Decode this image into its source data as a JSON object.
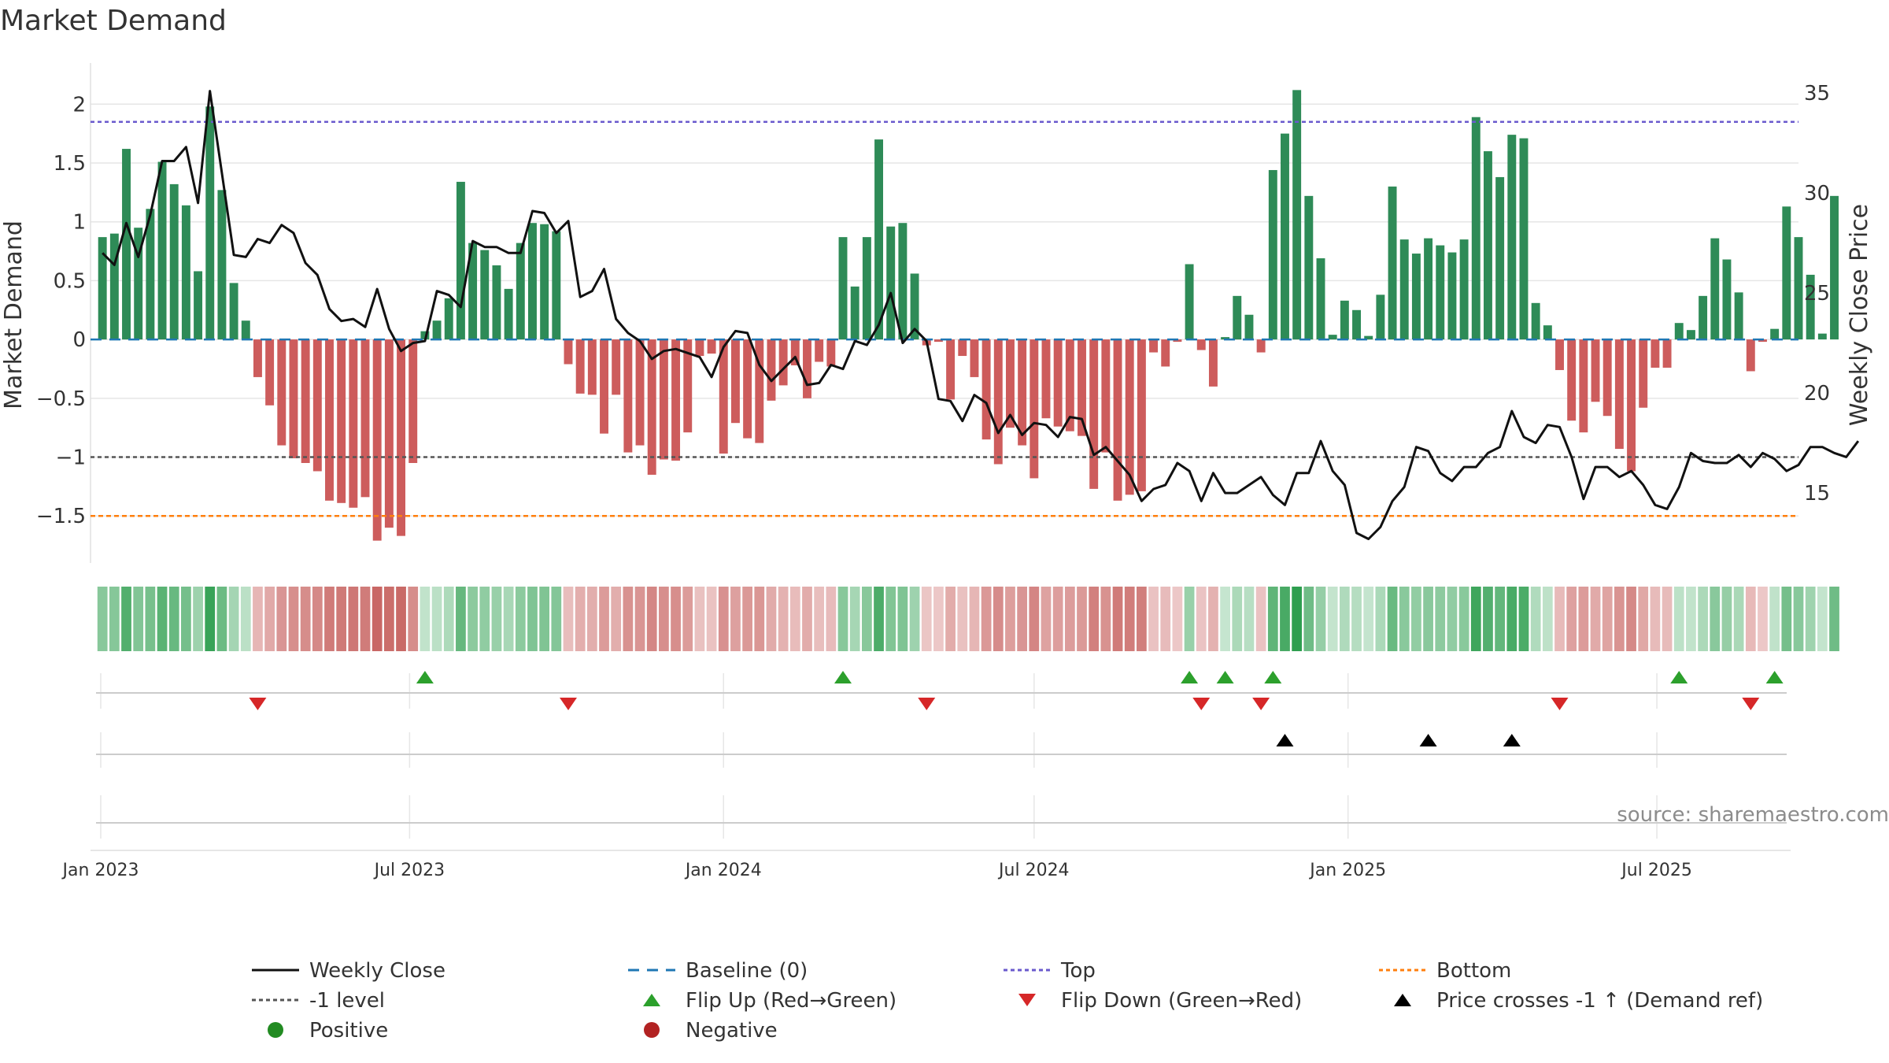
{
  "title": "Market Demand",
  "source": "source: sharemaestro.com",
  "colors": {
    "positive": "#2e8b57",
    "negative": "#cd5c5c",
    "price": "#111111",
    "baseline": "#1f77b4",
    "top": "#6a5acd",
    "bottom": "#ff7f0e",
    "minus_one": "#555555",
    "flip_up": "#2ca02c",
    "flip_down": "#d62728",
    "cross": "#000000",
    "legend_positive": "#228b22",
    "legend_negative": "#b22222"
  },
  "chart_data": {
    "type": "bar",
    "title": "Market Demand",
    "ylabel": "Market Demand",
    "y2label": "Weekly Close Price",
    "ylim": [
      -1.9,
      2.35
    ],
    "y2lim": [
      11.5,
      36.5
    ],
    "yticks": [
      -1.5,
      -1,
      -0.5,
      0,
      0.5,
      1,
      1.5,
      2
    ],
    "ytick_labels": [
      "−1.5",
      "−1",
      "−0.5",
      "0",
      "0.5",
      "1",
      "1.5",
      "2"
    ],
    "y2ticks": [
      15,
      20,
      25,
      30,
      35
    ],
    "y2tick_labels": [
      "15",
      "20",
      "25",
      "30",
      "35"
    ],
    "start_date": "2023-01-02",
    "x_date_range": [
      "2022-12-26",
      "2025-09-22"
    ],
    "x_ticks": [
      {
        "label": "Jan 2023",
        "date": "2023-01-01"
      },
      {
        "label": "Jul 2023",
        "date": "2023-07-01"
      },
      {
        "label": "Jan 2024",
        "date": "2024-01-01"
      },
      {
        "label": "Jul 2024",
        "date": "2024-07-01"
      },
      {
        "label": "Jan 2025",
        "date": "2025-01-01"
      },
      {
        "label": "Jul 2025",
        "date": "2025-07-01"
      }
    ],
    "reference_lines": {
      "baseline": 0,
      "minus_one": -1,
      "top": 1.85,
      "bottom": -1.5
    },
    "demand": [
      0.87,
      0.9,
      1.62,
      0.95,
      1.11,
      1.51,
      1.32,
      1.14,
      0.58,
      1.98,
      1.27,
      0.48,
      0.16,
      -0.32,
      -0.56,
      -0.9,
      -1.01,
      -1.05,
      -1.12,
      -1.37,
      -1.39,
      -1.43,
      -1.34,
      -1.71,
      -1.6,
      -1.67,
      -1.05,
      0.07,
      0.16,
      0.35,
      1.34,
      0.82,
      0.76,
      0.63,
      0.43,
      0.82,
      0.99,
      0.98,
      0.92,
      -0.21,
      -0.46,
      -0.47,
      -0.8,
      -0.47,
      -0.96,
      -0.9,
      -1.15,
      -1.02,
      -1.03,
      -0.79,
      -0.14,
      -0.12,
      -0.97,
      -0.71,
      -0.84,
      -0.88,
      -0.52,
      -0.39,
      -0.22,
      -0.5,
      -0.19,
      -0.23,
      0.87,
      0.45,
      0.87,
      1.7,
      0.96,
      0.99,
      0.56,
      -0.05,
      -0.02,
      -0.51,
      -0.14,
      -0.32,
      -0.85,
      -1.06,
      -0.75,
      -0.9,
      -1.18,
      -0.67,
      -0.74,
      -0.78,
      -0.82,
      -1.27,
      -0.96,
      -1.37,
      -1.32,
      -1.29,
      -0.11,
      -0.23,
      -0.02,
      0.64,
      -0.09,
      -0.4,
      0.02,
      0.37,
      0.21,
      -0.11,
      1.44,
      1.75,
      2.12,
      1.22,
      0.69,
      0.04,
      0.33,
      0.25,
      0.03,
      0.38,
      1.3,
      0.85,
      0.73,
      0.86,
      0.8,
      0.74,
      0.85,
      1.89,
      1.6,
      1.38,
      1.74,
      1.71,
      0.31,
      0.12,
      -0.26,
      -0.69,
      -0.79,
      -0.53,
      -0.65,
      -0.93,
      -1.12,
      -0.58,
      -0.24,
      -0.24,
      0.14,
      0.08,
      0.37,
      0.86,
      0.68,
      0.4,
      -0.27,
      -0.02,
      0.09,
      1.13,
      0.87,
      0.55,
      0.05,
      1.22
    ],
    "price": [
      27.0,
      26.4,
      28.5,
      26.8,
      28.9,
      31.6,
      31.6,
      32.3,
      29.5,
      35.1,
      31.0,
      26.9,
      26.8,
      27.7,
      27.5,
      28.4,
      28.0,
      26.5,
      25.9,
      24.2,
      23.6,
      23.7,
      23.3,
      25.2,
      23.2,
      22.1,
      22.5,
      22.6,
      25.1,
      24.9,
      24.3,
      27.6,
      27.3,
      27.3,
      27.0,
      27.0,
      29.1,
      29.0,
      28.0,
      28.6,
      24.8,
      25.1,
      26.2,
      23.7,
      23.0,
      22.6,
      21.7,
      22.1,
      22.2,
      22.0,
      21.8,
      20.8,
      22.3,
      23.1,
      23.0,
      21.4,
      20.6,
      21.2,
      21.8,
      20.4,
      20.5,
      21.4,
      21.2,
      22.6,
      22.4,
      23.4,
      25.0,
      22.5,
      23.2,
      22.6,
      19.7,
      19.6,
      18.6,
      19.9,
      19.5,
      18.0,
      18.9,
      17.9,
      18.5,
      18.4,
      17.8,
      18.8,
      18.7,
      16.9,
      17.3,
      16.6,
      15.9,
      14.6,
      15.2,
      15.4,
      16.5,
      16.1,
      14.6,
      16.0,
      15.0,
      15.0,
      15.4,
      15.8,
      14.9,
      14.4,
      16.0,
      16.0,
      17.6,
      16.1,
      15.4,
      13.0,
      12.7,
      13.3,
      14.6,
      15.3,
      17.3,
      17.1,
      16.0,
      15.6,
      16.3,
      16.3,
      17.0,
      17.3,
      19.1,
      17.8,
      17.5,
      18.4,
      18.3,
      16.8,
      14.7,
      16.3,
      16.3,
      15.8,
      16.1,
      15.4,
      14.4,
      14.2,
      15.3,
      17.0,
      16.6,
      16.5,
      16.5,
      16.9,
      16.3,
      17.0,
      16.7,
      16.1,
      16.4,
      17.3,
      17.3,
      17.0,
      16.8,
      17.6
    ]
  },
  "flip_up_labels": [
    "Flip Up (Red→Green)"
  ],
  "legend": [
    {
      "label": "Weekly Close",
      "type": "line",
      "color": "#111111"
    },
    {
      "label": "Baseline (0)",
      "type": "dash",
      "color": "#1f77b4"
    },
    {
      "label": "Top",
      "type": "dot",
      "color": "#6a5acd"
    },
    {
      "label": "Bottom",
      "type": "dot",
      "color": "#ff7f0e"
    },
    {
      "label": "-1 level",
      "type": "dot",
      "color": "#555555"
    },
    {
      "label": "Flip Up (Red→Green)",
      "type": "tri-up",
      "color": "#2ca02c"
    },
    {
      "label": "Flip Down (Green→Red)",
      "type": "tri-down",
      "color": "#d62728"
    },
    {
      "label": "Price crosses -1 ↑ (Demand ref)",
      "type": "tri-up",
      "color": "#000000"
    },
    {
      "label": "Positive",
      "type": "circle",
      "color": "#228b22"
    },
    {
      "label": "Negative",
      "type": "circle",
      "color": "#b22222"
    }
  ]
}
